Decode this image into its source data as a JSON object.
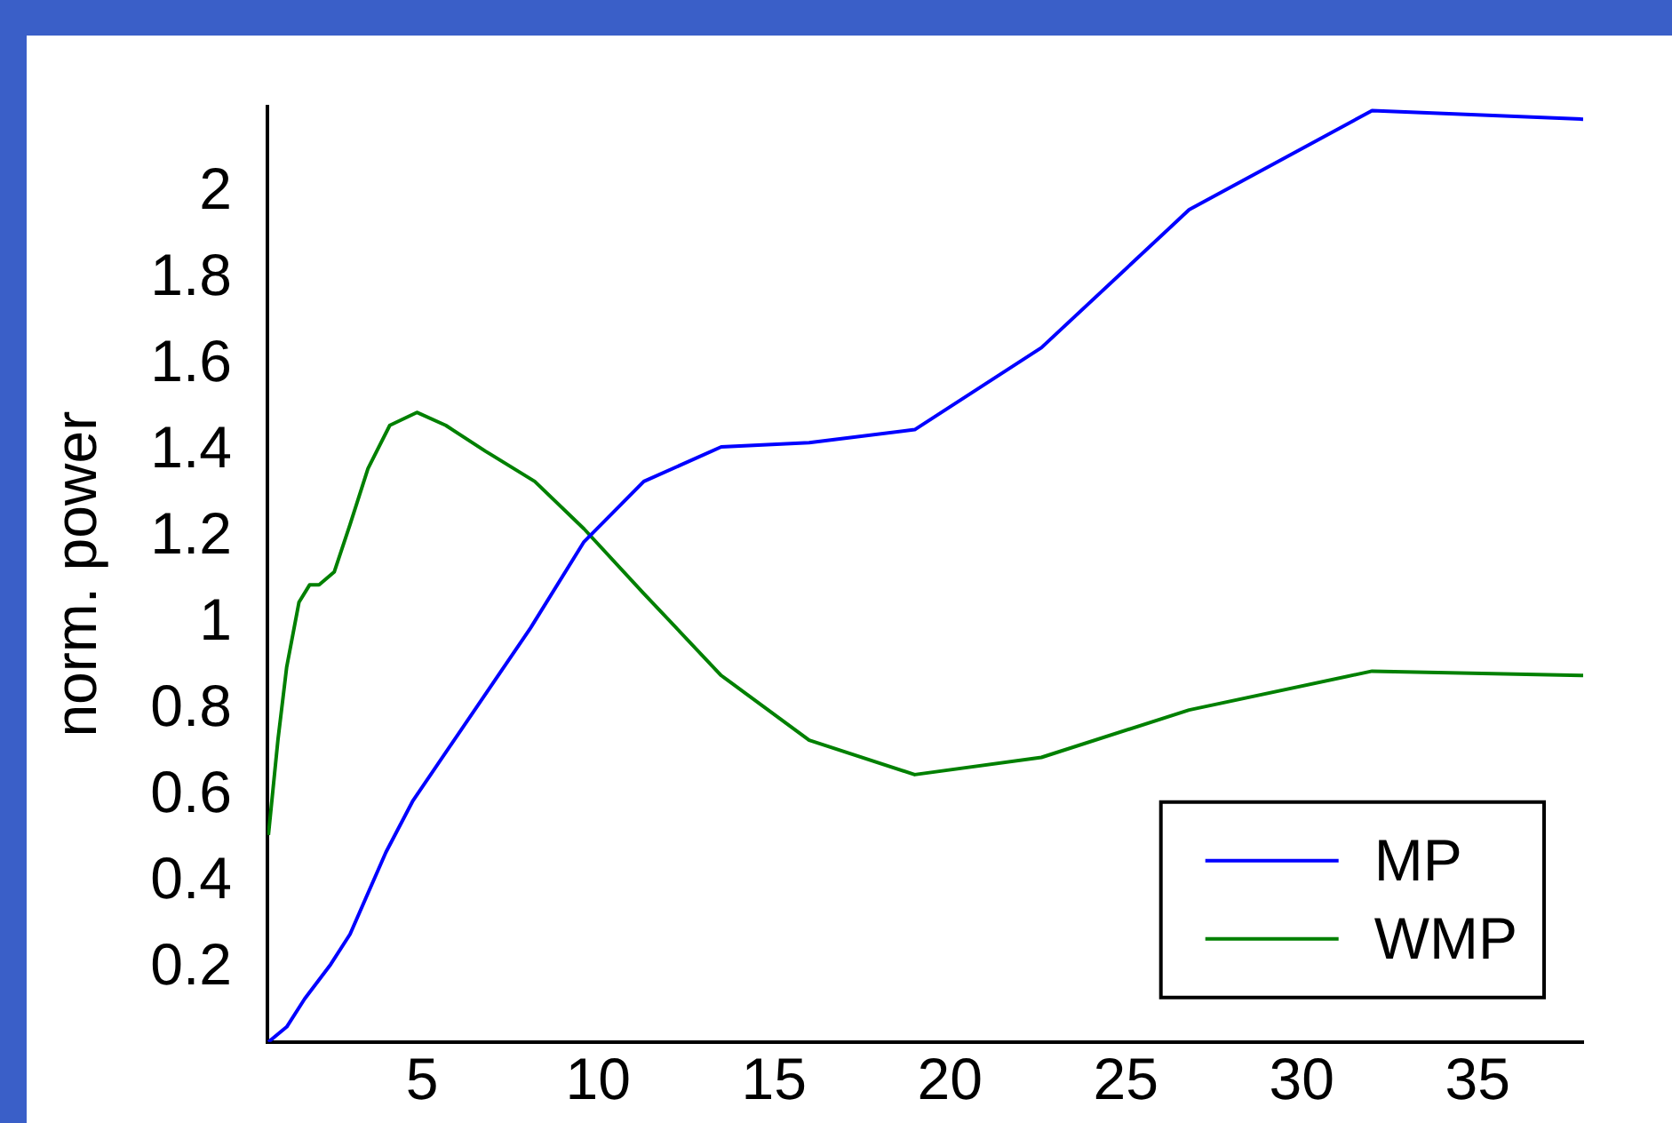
{
  "chart_data": {
    "type": "line",
    "ylabel": "norm. power",
    "xlim": [
      0.6,
      38
    ],
    "ylim": [
      0.03,
      2.2
    ],
    "xticks": [
      5,
      10,
      15,
      20,
      25,
      30,
      35
    ],
    "yticks": [
      0.2,
      0.4,
      0.6,
      0.8,
      1,
      1.2,
      1.4,
      1.6,
      1.8,
      2
    ],
    "grid": false,
    "legend": "bottom right",
    "marker": "none",
    "line_style": "solid",
    "series": [
      {
        "name": "MP",
        "color": "#0000ff",
        "x": [
          0.63,
          1.15,
          1.66,
          2.4,
          2.95,
          3.97,
          4.74,
          8.08,
          9.6,
          11.3,
          13.5,
          16,
          19,
          22.6,
          26.8,
          32,
          38
        ],
        "values": [
          0.03,
          0.065,
          0.13,
          0.21,
          0.28,
          0.47,
          0.59,
          0.99,
          1.19,
          1.33,
          1.41,
          1.42,
          1.45,
          1.64,
          1.96,
          2.19,
          2.17
        ]
      },
      {
        "name": "WMP",
        "color": "#008000",
        "x": [
          0.63,
          0.9,
          1.15,
          1.5,
          1.8,
          2.07,
          2.5,
          2.95,
          3.46,
          4.08,
          4.85,
          5.67,
          6.8,
          8.2,
          9.6,
          11.3,
          13.5,
          16,
          19,
          22.6,
          26.8,
          32,
          38
        ],
        "values": [
          0.51,
          0.73,
          0.9,
          1.05,
          1.09,
          1.09,
          1.12,
          1.23,
          1.36,
          1.46,
          1.49,
          1.46,
          1.4,
          1.33,
          1.22,
          1.07,
          0.88,
          0.73,
          0.65,
          0.69,
          0.8,
          0.89,
          0.88
        ]
      }
    ]
  }
}
